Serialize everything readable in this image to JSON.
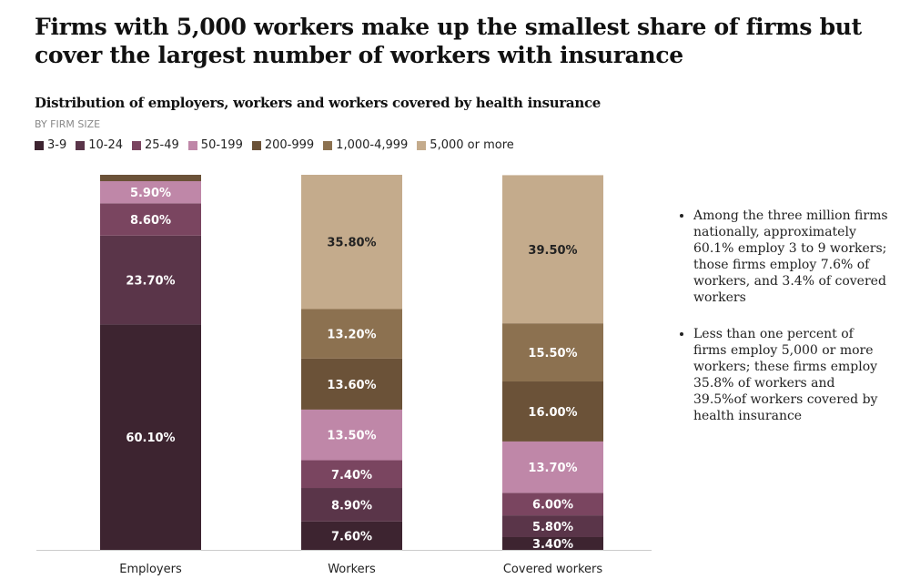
{
  "title": "Firms with 5,000 workers make up the smallest share of firms but cover the largest number of workers with insurance",
  "notes": [
    "Among the three million firms nationally, approximately 60.1% employ 3 to 9 workers; those firms employ 7.6% of workers, and 3.4% of covered workers",
    "Less than one percent of firms employ 5,000 or more workers; these firms employ 35.8% of workers and 39.5%of workers covered by health insurance"
  ],
  "chart_data": {
    "type": "bar",
    "stacked": true,
    "title": "Distribution of employers, workers and workers covered by health insurance",
    "subtitle": "BY FIRM SIZE",
    "legend_placement": "top-left",
    "ylim": [
      0,
      100
    ],
    "categories": [
      "Employers",
      "Workers",
      "Covered workers"
    ],
    "series": [
      {
        "name": "3-9",
        "color": "#3d2430",
        "values": [
          60.1,
          7.6,
          3.4
        ],
        "labels": [
          "60.10%",
          "7.60%",
          "3.40%"
        ]
      },
      {
        "name": "10-24",
        "color": "#5a3549",
        "values": [
          23.7,
          8.9,
          5.8
        ],
        "labels": [
          "23.70%",
          "8.90%",
          "5.80%"
        ]
      },
      {
        "name": "25-49",
        "color": "#7a4560",
        "values": [
          8.6,
          7.4,
          6.0
        ],
        "labels": [
          "8.60%",
          "7.40%",
          "6.00%"
        ]
      },
      {
        "name": "50-199",
        "color": "#bf87a8",
        "values": [
          5.9,
          13.5,
          13.7
        ],
        "labels": [
          "5.90%",
          "13.50%",
          "13.70%"
        ]
      },
      {
        "name": "200-999",
        "color": "#6b5238",
        "values": [
          1.7,
          13.6,
          16.0
        ],
        "labels": [
          "",
          "13.60%",
          "16.00%"
        ]
      },
      {
        "name": "1,000-4,999",
        "color": "#8c7150",
        "values": [
          0,
          13.2,
          15.5
        ],
        "labels": [
          "",
          "13.20%",
          "15.50%"
        ]
      },
      {
        "name": "5,000 or more",
        "color": "#c4ab8c",
        "values": [
          0,
          35.8,
          39.5
        ],
        "labels": [
          "",
          "35.80%",
          "39.50%"
        ]
      }
    ]
  }
}
